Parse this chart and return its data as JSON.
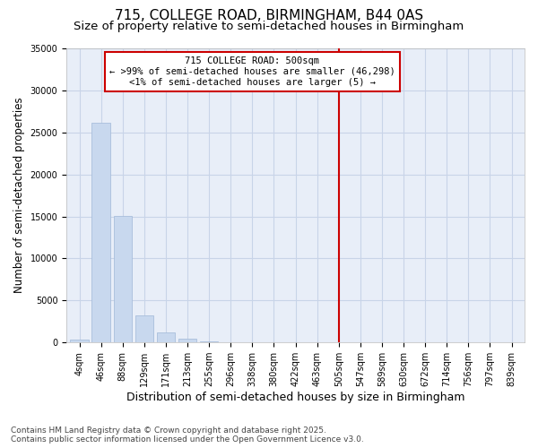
{
  "title": "715, COLLEGE ROAD, BIRMINGHAM, B44 0AS",
  "subtitle": "Size of property relative to semi-detached houses in Birmingham",
  "xlabel": "Distribution of semi-detached houses by size in Birmingham",
  "ylabel": "Number of semi-detached properties",
  "bar_color": "#c8d8ee",
  "bar_edge_color": "#a0b8d8",
  "categories": [
    "4sqm",
    "46sqm",
    "88sqm",
    "129sqm",
    "171sqm",
    "213sqm",
    "255sqm",
    "296sqm",
    "338sqm",
    "380sqm",
    "422sqm",
    "463sqm",
    "505sqm",
    "547sqm",
    "589sqm",
    "630sqm",
    "672sqm",
    "714sqm",
    "756sqm",
    "797sqm",
    "839sqm"
  ],
  "values": [
    380,
    26100,
    15100,
    3250,
    1200,
    480,
    180,
    50,
    25,
    12,
    5,
    2,
    1,
    0,
    0,
    0,
    0,
    0,
    0,
    0,
    0
  ],
  "vline_x_index": 12,
  "vline_color": "#cc0000",
  "annotation_title": "715 COLLEGE ROAD: 500sqm",
  "annotation_line2": "← >99% of semi-detached houses are smaller (46,298)",
  "annotation_line3": "<1% of semi-detached houses are larger (5) →",
  "annotation_box_color": "#cc0000",
  "footer_line1": "Contains HM Land Registry data © Crown copyright and database right 2025.",
  "footer_line2": "Contains public sector information licensed under the Open Government Licence v3.0.",
  "ylim": [
    0,
    35000
  ],
  "yticks": [
    0,
    5000,
    10000,
    15000,
    20000,
    25000,
    30000,
    35000
  ],
  "background_color": "#ffffff",
  "plot_background": "#e8eef8",
  "grid_color": "#c8d4e8",
  "title_fontsize": 11,
  "subtitle_fontsize": 9.5,
  "tick_fontsize": 7,
  "ylabel_fontsize": 8.5,
  "xlabel_fontsize": 9,
  "footer_fontsize": 6.5
}
